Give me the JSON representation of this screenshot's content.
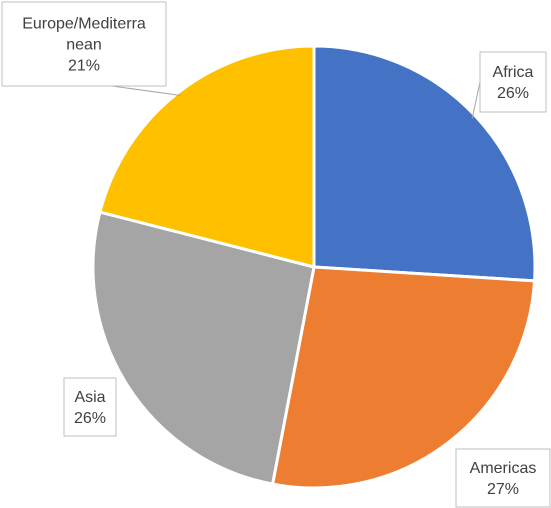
{
  "chart_data": {
    "type": "pie",
    "title": "",
    "slices": [
      {
        "label": "Africa",
        "value": 26,
        "value_label": "26%",
        "color": "#4472C4"
      },
      {
        "label": "Americas",
        "value": 27,
        "value_label": "27%",
        "color": "#ED7D31"
      },
      {
        "label": "Asia",
        "value": 26,
        "value_label": "26%",
        "color": "#A5A5A5"
      },
      {
        "label": "Europe/Mediterranean",
        "label_lines": [
          "Europe/Mediterra",
          "nean"
        ],
        "value": 21,
        "value_label": "21%",
        "color": "#FFC000"
      }
    ],
    "legend": "none",
    "data_labels": "callouts with category name and percentage"
  }
}
